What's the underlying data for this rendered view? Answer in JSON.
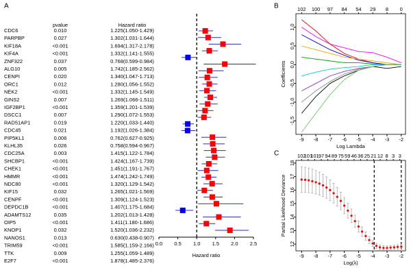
{
  "chart_data": [
    {
      "type": "forest",
      "panel_label": "A",
      "columns": [
        "pvalue",
        "Hazard ratio"
      ],
      "xlabel": "Hazard ratio",
      "xlim": [
        0,
        2.5
      ],
      "xticks": [
        {
          "value": 0,
          "label": "0.0"
        },
        0.5,
        {
          "value": 1,
          "label": "1.0"
        },
        1.5,
        {
          "value": 2,
          "label": "2.0"
        },
        2.5
      ],
      "ref_line": 1,
      "color_high": "#ff0000",
      "color_low": "#0000ff",
      "ci_color": "#2b2bb0",
      "rows": [
        {
          "gene": "CDC6",
          "pvalue": "0.010",
          "hr_text": "1.225(1.050-1.429)",
          "hr": 1.225,
          "lower": 1.05,
          "upper": 1.429
        },
        {
          "gene": "PARPBP",
          "pvalue": "0.027",
          "hr_text": "1.302(1.031-1.644)",
          "hr": 1.302,
          "lower": 1.031,
          "upper": 1.644
        },
        {
          "gene": "KIF18A",
          "pvalue": "<0.001",
          "hr_text": "1.694(1.317-2.178)",
          "hr": 1.694,
          "lower": 1.317,
          "upper": 2.178
        },
        {
          "gene": "KIF4A",
          "pvalue": "<0.001",
          "hr_text": "1.332(1.141-1.555)",
          "hr": 1.332,
          "lower": 1.141,
          "upper": 1.555
        },
        {
          "gene": "ZNF322",
          "pvalue": "0.037",
          "hr_text": "0.768(0.599-0.984)",
          "hr": 0.768,
          "lower": 0.599,
          "upper": 0.984
        },
        {
          "gene": "ALG10",
          "pvalue": "0.005",
          "hr_text": "1.742(1.185-2.562)",
          "hr": 1.742,
          "lower": 1.185,
          "upper": 2.562
        },
        {
          "gene": "CENPI",
          "pvalue": "0.020",
          "hr_text": "1.340(1.047-1.713)",
          "hr": 1.34,
          "lower": 1.047,
          "upper": 1.713
        },
        {
          "gene": "ORC1",
          "pvalue": "0.012",
          "hr_text": "1.280(1.056-1.552)",
          "hr": 1.28,
          "lower": 1.056,
          "upper": 1.552
        },
        {
          "gene": "NEK2",
          "pvalue": "<0.001",
          "hr_text": "1.332(1.145-1.549)",
          "hr": 1.332,
          "lower": 1.145,
          "upper": 1.549
        },
        {
          "gene": "GINS2",
          "pvalue": "0.007",
          "hr_text": "1.269(1.066-1.511)",
          "hr": 1.269,
          "lower": 1.066,
          "upper": 1.511
        },
        {
          "gene": "IGF2BP1",
          "pvalue": "<0.001",
          "hr_text": "1.359(1.201-1.539)",
          "hr": 1.359,
          "lower": 1.201,
          "upper": 1.539
        },
        {
          "gene": "DSCC1",
          "pvalue": "0.007",
          "hr_text": "1.290(1.072-1.553)",
          "hr": 1.29,
          "lower": 1.072,
          "upper": 1.553
        },
        {
          "gene": "RAD51AP1",
          "pvalue": "0.019",
          "hr_text": "1.220(1.033-1.440)",
          "hr": 1.22,
          "lower": 1.033,
          "upper": 1.44
        },
        {
          "gene": "CDC45",
          "pvalue": "0.021",
          "hr_text": "1.192(1.026-1.384)",
          "hr": 1.192,
          "lower": 1.026,
          "upper": 1.384
        },
        {
          "gene": "PIP5KL1",
          "pvalue": "0.006",
          "hr_text": "0.762(0.627-0.925)",
          "hr": 0.762,
          "lower": 0.627,
          "upper": 0.925
        },
        {
          "gene": "KLHL35",
          "pvalue": "0.026",
          "hr_text": "0.758(0.594-0.967)",
          "hr": 0.758,
          "lower": 0.594,
          "upper": 0.967
        },
        {
          "gene": "CDC25A",
          "pvalue": "0.003",
          "hr_text": "1.415(1.122-1.784)",
          "hr": 1.415,
          "lower": 1.122,
          "upper": 1.784
        },
        {
          "gene": "SHCBP1",
          "pvalue": "<0.001",
          "hr_text": "1.424(1.167-1.739)",
          "hr": 1.424,
          "lower": 1.167,
          "upper": 1.739
        },
        {
          "gene": "CHEK1",
          "pvalue": "<0.001",
          "hr_text": "1.451(1.191-1.767)",
          "hr": 1.451,
          "lower": 1.191,
          "upper": 1.767
        },
        {
          "gene": "HMMR",
          "pvalue": "<0.001",
          "hr_text": "1.474(1.242-1.749)",
          "hr": 1.474,
          "lower": 1.242,
          "upper": 1.749
        },
        {
          "gene": "NDC80",
          "pvalue": "<0.001",
          "hr_text": "1.320(1.129-1.542)",
          "hr": 1.32,
          "lower": 1.129,
          "upper": 1.542
        },
        {
          "gene": "KIF15",
          "pvalue": "0.032",
          "hr_text": "1.265(1.021-1.569)",
          "hr": 1.265,
          "lower": 1.021,
          "upper": 1.569
        },
        {
          "gene": "CENPF",
          "pvalue": "<0.001",
          "hr_text": "1.309(1.124-1.523)",
          "hr": 1.309,
          "lower": 1.124,
          "upper": 1.523
        },
        {
          "gene": "DEPDC1B",
          "pvalue": "<0.001",
          "hr_text": "1.407(1.175-1.684)",
          "hr": 1.407,
          "lower": 1.175,
          "upper": 1.684
        },
        {
          "gene": "ADAMTS12",
          "pvalue": "0.035",
          "hr_text": "1.202(1.013-1.428)",
          "hr": 1.202,
          "lower": 1.013,
          "upper": 1.428
        },
        {
          "gene": "OIP5",
          "pvalue": "<0.001",
          "hr_text": "1.411(1.180-1.686)",
          "hr": 1.411,
          "lower": 1.18,
          "upper": 1.686
        },
        {
          "gene": "KNOP1",
          "pvalue": "0.032",
          "hr_text": "1.520(1.036-2.232)",
          "hr": 1.52,
          "lower": 1.036,
          "upper": 2.232
        },
        {
          "gene": "NANOS1",
          "pvalue": "0.013",
          "hr_text": "0.630(0.438-0.907)",
          "hr": 0.63,
          "lower": 0.438,
          "upper": 0.907
        },
        {
          "gene": "TRIM59",
          "pvalue": "<0.001",
          "hr_text": "1.585(1.159-2.166)",
          "hr": 1.585,
          "lower": 1.159,
          "upper": 2.166
        },
        {
          "gene": "TTK",
          "pvalue": "0.009",
          "hr_text": "1.255(1.059-1.489)",
          "hr": 1.255,
          "lower": 1.059,
          "upper": 1.489
        },
        {
          "gene": "E2F7",
          "pvalue": "<0.001",
          "hr_text": "1.878(1.485-2.376)",
          "hr": 1.878,
          "lower": 1.485,
          "upper": 2.376
        }
      ]
    },
    {
      "type": "line",
      "panel_label": "B",
      "xlabel": "Log Lambda",
      "ylabel": "Coefficients",
      "xlim": [
        -9.4,
        -1.7
      ],
      "xticks": [
        -9,
        -8,
        -7,
        -6,
        -5,
        -4,
        -3,
        -2
      ],
      "x2ticks": [
        {
          "value": -9,
          "label": "102"
        },
        {
          "value": -8,
          "label": "100"
        },
        {
          "value": -7,
          "label": "97"
        },
        {
          "value": -6,
          "label": "84"
        },
        {
          "value": -5,
          "label": "54"
        },
        {
          "value": -4,
          "label": "29"
        },
        {
          "value": -3,
          "label": "8"
        },
        {
          "value": -2,
          "label": "0"
        }
      ],
      "ylim": [
        -1.86,
        1.36
      ],
      "yticks": [
        {
          "value": 1,
          "label": "1.0"
        },
        0.5,
        {
          "value": 0,
          "label": "0.0"
        },
        -0.5,
        {
          "value": -1,
          "label": "-1.0"
        },
        -1.5
      ],
      "x": [
        -9,
        -8,
        -7,
        -6,
        -5,
        -4,
        -3,
        -2
      ],
      "series": [
        {
          "color": "#ff00ff",
          "values": [
            1.0,
            0.75,
            0.55,
            0.45,
            0.35,
            0.32,
            0.2,
            0.05
          ]
        },
        {
          "color": "#ff0000",
          "values": [
            1.2,
            0.9,
            0.55,
            0.3,
            0.15,
            0.05,
            0,
            0
          ]
        },
        {
          "color": "#0000ff",
          "values": [
            0.8,
            0.6,
            0.4,
            0.25,
            0.12,
            0.05,
            0,
            0
          ]
        },
        {
          "color": "#ffa500",
          "values": [
            0.5,
            0.4,
            0.3,
            0.2,
            0.15,
            0.1,
            0.05,
            0
          ]
        },
        {
          "color": "#00a000",
          "values": [
            0.2,
            0.15,
            0.1,
            0.05,
            0.05,
            0.02,
            0,
            0
          ]
        },
        {
          "color": "#00cccc",
          "values": [
            -0.3,
            -0.2,
            -0.12,
            -0.08,
            -0.05,
            0,
            0,
            0
          ]
        },
        {
          "color": "#8a2be2",
          "values": [
            -0.7,
            -0.5,
            -0.3,
            -0.18,
            -0.1,
            -0.05,
            0,
            0
          ]
        },
        {
          "color": "#888888",
          "values": [
            -1.0,
            -0.7,
            -0.45,
            -0.25,
            -0.12,
            -0.05,
            0,
            0
          ]
        },
        {
          "color": "#000000",
          "values": [
            -1.3,
            -0.85,
            -0.5,
            -0.3,
            -0.15,
            -0.05,
            -0.1,
            -0.05
          ]
        },
        {
          "color": "#66cc66",
          "values": [
            -1.8,
            -1.3,
            -0.8,
            -0.4,
            -0.15,
            -0.05,
            0,
            0
          ]
        }
      ]
    },
    {
      "type": "errorbar",
      "panel_label": "C",
      "xlabel": "Log(λ)",
      "ylabel": "Partial Likelihood Deviance",
      "xlim": [
        -9.4,
        -1.7
      ],
      "xticks": [
        -9,
        -8,
        -7,
        -6,
        -5,
        -4,
        -3,
        -2
      ],
      "x2ticks": [
        {
          "value": -9,
          "label": "102"
        },
        {
          "value": -8.54,
          "label": "101"
        },
        {
          "value": -8.08,
          "label": "101"
        },
        {
          "value": -7.62,
          "label": "97"
        },
        {
          "value": -7.16,
          "label": "94"
        },
        {
          "value": -6.7,
          "label": "89"
        },
        {
          "value": -6.24,
          "label": "75"
        },
        {
          "value": -5.78,
          "label": "59"
        },
        {
          "value": -5.32,
          "label": "46"
        },
        {
          "value": -4.86,
          "label": "36"
        },
        {
          "value": -4.4,
          "label": "25"
        },
        {
          "value": -3.94,
          "label": "21"
        },
        {
          "value": -3.48,
          "label": "12"
        },
        {
          "value": -3.02,
          "label": "8"
        },
        {
          "value": -2.56,
          "label": "3"
        },
        {
          "value": -2.1,
          "label": "3"
        }
      ],
      "ylim": [
        11.5,
        18.2
      ],
      "yticks": [
        12,
        13,
        14,
        15,
        16,
        17,
        18
      ],
      "color": "#ff0000",
      "error_color": "#aaaaaa",
      "vlines": [
        -3.9,
        -2
      ],
      "x": [
        -9,
        -8.75,
        -8.5,
        -8.25,
        -8,
        -7.75,
        -7.5,
        -7.25,
        -7,
        -6.75,
        -6.5,
        -6.25,
        -6,
        -5.75,
        -5.5,
        -5.25,
        -5,
        -4.75,
        -4.5,
        -4.25,
        -4,
        -3.75,
        -3.5,
        -3.25,
        -3,
        -2.75,
        -2.5,
        -2.25,
        -2
      ],
      "values": [
        16.78,
        16.76,
        16.72,
        16.66,
        16.58,
        16.48,
        16.35,
        16.19,
        16.0,
        15.77,
        15.5,
        15.2,
        14.85,
        14.48,
        14.1,
        13.7,
        13.3,
        12.93,
        12.6,
        12.3,
        12.05,
        11.87,
        11.76,
        11.72,
        11.72,
        11.74,
        11.76,
        11.79,
        11.82
      ],
      "errors": [
        0.95,
        0.93,
        0.91,
        0.89,
        0.87,
        0.85,
        0.82,
        0.79,
        0.76,
        0.73,
        0.69,
        0.65,
        0.6,
        0.55,
        0.5,
        0.45,
        0.4,
        0.35,
        0.3,
        0.26,
        0.22,
        0.19,
        0.17,
        0.16,
        0.15,
        0.15,
        0.15,
        0.16,
        0.17
      ]
    }
  ]
}
